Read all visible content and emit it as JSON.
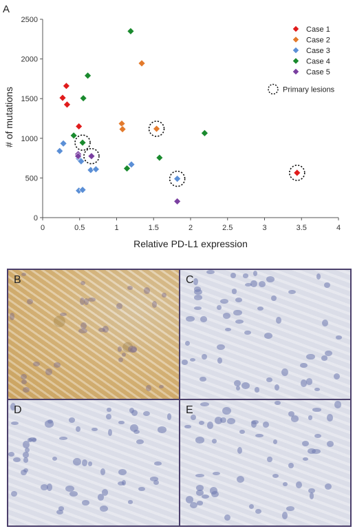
{
  "figure": {
    "panel_labels": {
      "a": "A",
      "b": "B",
      "c": "C",
      "d": "D",
      "e": "E"
    }
  },
  "colors": {
    "case1": "#e01b1b",
    "case2": "#e37a2c",
    "case3": "#5b8fd6",
    "case4": "#1a8a2e",
    "case5": "#7a3fa0",
    "frame": "#4b3f6b"
  },
  "chart_data": {
    "type": "scatter",
    "title": "",
    "xlabel": "Relative PD-L1 expression",
    "ylabel": "# of mutations",
    "xlim": [
      0,
      4
    ],
    "ylim": [
      0,
      2500
    ],
    "x_ticks": [
      "0",
      "0.5",
      "1",
      "1.5",
      "2",
      "2.5",
      "3",
      "3.5",
      "4"
    ],
    "y_ticks": [
      "0",
      "500",
      "1000",
      "1500",
      "2000",
      "2500"
    ],
    "grid": false,
    "legend_position": "top-right",
    "legend_extra": "Primary lesions",
    "series": [
      {
        "name": "Case 1",
        "color": "#e01b1b",
        "points": [
          [
            0.27,
            1510
          ],
          [
            0.32,
            1660
          ],
          [
            0.33,
            1425
          ],
          [
            0.49,
            1150
          ],
          [
            3.44,
            565
          ]
        ]
      },
      {
        "name": "Case 2",
        "color": "#e37a2c",
        "points": [
          [
            1.07,
            1185
          ],
          [
            1.08,
            1115
          ],
          [
            1.34,
            1945
          ],
          [
            1.54,
            1120
          ]
        ]
      },
      {
        "name": "Case 3",
        "color": "#5b8fd6",
        "points": [
          [
            0.23,
            840
          ],
          [
            0.28,
            935
          ],
          [
            0.49,
            745
          ],
          [
            0.52,
            710
          ],
          [
            0.49,
            340
          ],
          [
            0.54,
            350
          ],
          [
            0.65,
            600
          ],
          [
            0.72,
            610
          ],
          [
            1.2,
            670
          ],
          [
            1.82,
            490
          ]
        ]
      },
      {
        "name": "Case 4",
        "color": "#1a8a2e",
        "points": [
          [
            0.42,
            1035
          ],
          [
            0.54,
            945
          ],
          [
            0.55,
            1505
          ],
          [
            0.61,
            1790
          ],
          [
            1.14,
            620
          ],
          [
            1.19,
            2350
          ],
          [
            1.58,
            755
          ],
          [
            2.19,
            1065
          ]
        ]
      },
      {
        "name": "Case 5",
        "color": "#7a3fa0",
        "points": [
          [
            0.48,
            800
          ],
          [
            0.48,
            775
          ],
          [
            0.66,
            775
          ],
          [
            1.82,
            205
          ]
        ]
      }
    ],
    "primary_lesions": [
      [
        0.54,
        945
      ],
      [
        0.66,
        775
      ],
      [
        1.54,
        1120
      ],
      [
        1.82,
        490
      ],
      [
        3.44,
        565
      ]
    ]
  }
}
